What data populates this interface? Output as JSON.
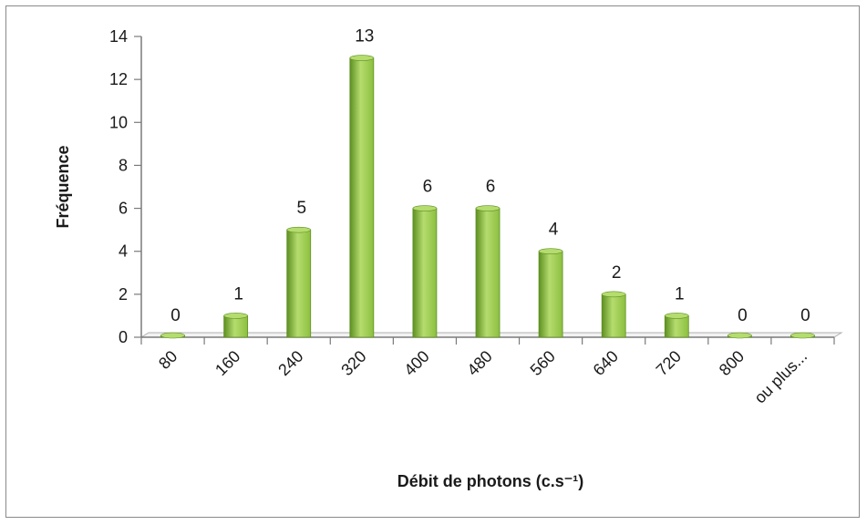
{
  "chart_data": {
    "type": "bar",
    "categories": [
      "80",
      "160",
      "240",
      "320",
      "400",
      "480",
      "560",
      "640",
      "720",
      "800",
      "ou plus..."
    ],
    "values": [
      0,
      1,
      5,
      13,
      6,
      6,
      4,
      2,
      1,
      0,
      0
    ],
    "xlabel": "Débit de photons (c.s⁻¹)",
    "ylabel": "Fréquence",
    "ylim": [
      0,
      14
    ],
    "yticks": [
      0,
      2,
      4,
      6,
      8,
      10,
      12,
      14
    ],
    "grid": false,
    "legend": "none",
    "bar_color": "#8cbf3f",
    "bar_dark_color": "#5e8f22",
    "bar_light_color": "#b5dc6e"
  }
}
